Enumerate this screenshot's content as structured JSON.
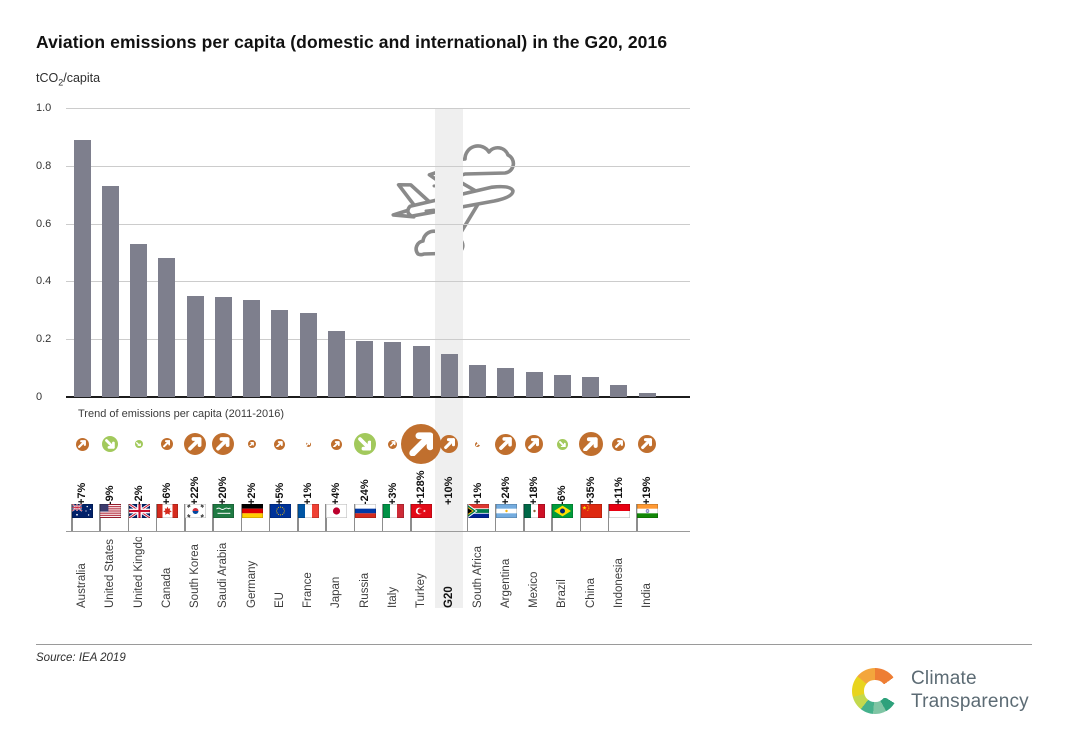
{
  "title": "Aviation emissions per capita (domestic and international) in the G20, 2016",
  "unit": {
    "text": "tCO",
    "sub": "2",
    "suffix": "/capita"
  },
  "trend_label": "Trend of emissions per capita (2011-2016)",
  "source": "Source: IEA 2019",
  "logo": {
    "line1": "Climate",
    "line2": "Transparency"
  },
  "colors": {
    "bar": "#7e7f8d",
    "trend_up": "#c06f2e",
    "trend_down": "#a2c95c",
    "highlight_band": "#efefef",
    "plane_stroke": "#8a8a8a"
  },
  "chart_data": {
    "type": "bar",
    "title": "Aviation emissions per capita (domestic and international) in the G20, 2016",
    "ylabel": "tCO2/capita",
    "ylim": [
      0,
      1.0
    ],
    "ytick_labels": [
      "1.0",
      "0.8",
      "0.6",
      "0.4",
      "0.2",
      "0"
    ],
    "grid": true,
    "highlight_category": "G20",
    "categories": [
      "Australia",
      "United States",
      "United Kingdom",
      "Canada",
      "South Korea",
      "Saudi Arabia",
      "Germany",
      "EU",
      "France",
      "Japan",
      "Russia",
      "Italy",
      "Turkey",
      "G20",
      "South Africa",
      "Argentina",
      "Mexico",
      "Brazil",
      "China",
      "Indonesia",
      "India"
    ],
    "values": [
      0.89,
      0.73,
      0.53,
      0.48,
      0.35,
      0.345,
      0.335,
      0.3,
      0.29,
      0.23,
      0.195,
      0.19,
      0.175,
      0.15,
      0.11,
      0.1,
      0.085,
      0.075,
      0.07,
      0.04,
      0.015
    ],
    "trend_pct": [
      "+7%",
      "-9%",
      "-2%",
      "+6%",
      "+22%",
      "+20%",
      "+2%",
      "+5%",
      "+1%",
      "+4%",
      "-24%",
      "+3%",
      "+128%",
      "+10%",
      "+1%",
      "+24%",
      "+18%",
      "-6%",
      "+35%",
      "+11%",
      "+19%"
    ],
    "trend_dir": [
      "up",
      "down",
      "down",
      "up",
      "up",
      "up",
      "up",
      "up",
      "up",
      "up",
      "down",
      "up",
      "up",
      "up",
      "up",
      "up",
      "up",
      "down",
      "up",
      "up",
      "up"
    ],
    "trend_icon_size": [
      13,
      16,
      8,
      12,
      22,
      22,
      8,
      11,
      5,
      11,
      22,
      9,
      40,
      18,
      5,
      21,
      18,
      11,
      24,
      13,
      18
    ],
    "flags": [
      "au",
      "us",
      "gb",
      "ca",
      "kr",
      "sa",
      "de",
      "eu",
      "fr",
      "jp",
      "ru",
      "it",
      "tr",
      null,
      "za",
      "ar",
      "mx",
      "br",
      "cn",
      "id",
      "in"
    ]
  }
}
